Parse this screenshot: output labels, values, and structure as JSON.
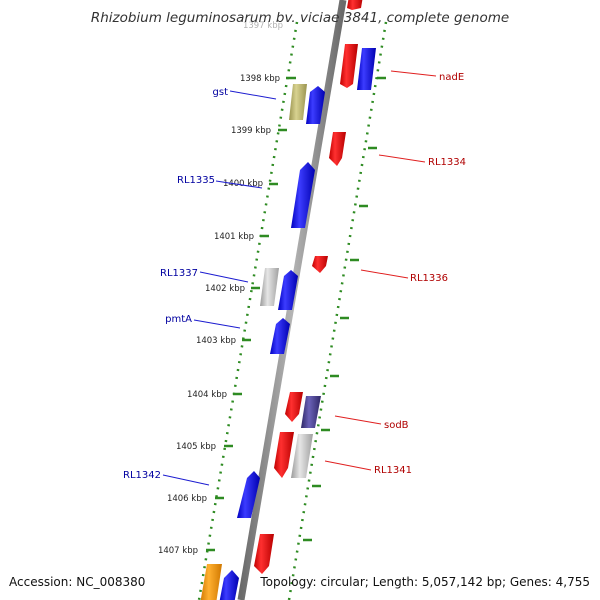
{
  "title": "Rhizobium leguminosarum bv. viciae 3841, complete genome",
  "footer": {
    "accession": "Accession: NC_008380",
    "summary": "Topology: circular; Length: 5,057,142 bp; Genes: 4,755"
  },
  "colors": {
    "forward": "#0000ff",
    "reverse": "#ff0000",
    "gst": "#bdb76b",
    "unknown": "#c8c8c8",
    "sodB": "#483d8b",
    "orange": "#ff9900",
    "ticks": "#2e8b22",
    "backbone": "#7d7d7d",
    "forward_label": "#0000a0",
    "reverse_label": "#b00000"
  },
  "kbp_labels": [
    "1397 kbp",
    "1398 kbp",
    "1399 kbp",
    "1400 kbp",
    "1401 kbp",
    "1402 kbp",
    "1403 kbp",
    "1404 kbp",
    "1405 kbp",
    "1406 kbp",
    "1407 kbp"
  ],
  "gene_labels": {
    "left": [
      "gst",
      "RL1335",
      "RL1337",
      "pmtA",
      "RL1342"
    ],
    "right": [
      "nadE",
      "RL1334",
      "RL1336",
      "sodB",
      "RL1341"
    ]
  }
}
